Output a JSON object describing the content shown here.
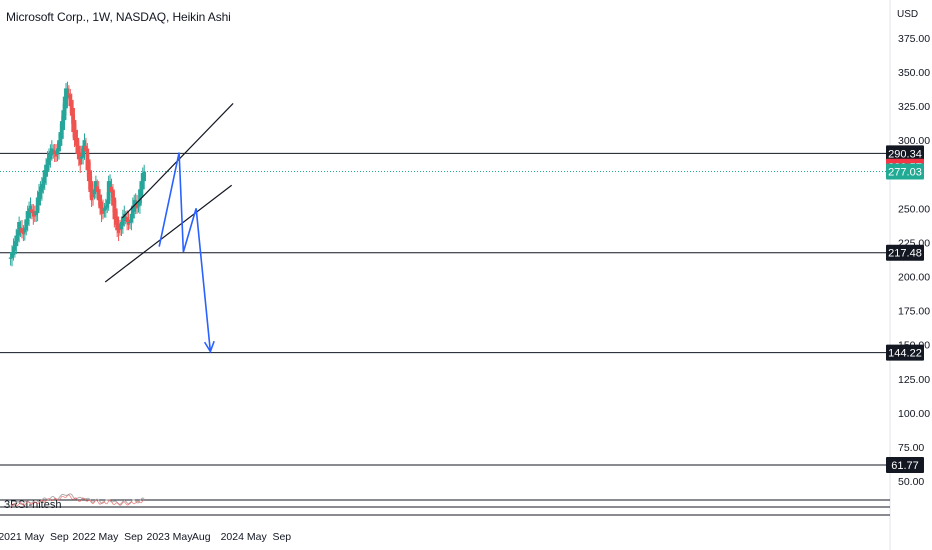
{
  "header": {
    "title": "Microsoft Corp., 1W, NASDAQ, Heikin Ashi",
    "currency": "USD"
  },
  "indicator": {
    "label": "3RSI-hitesh"
  },
  "colors": {
    "up": "#26a69a",
    "down": "#ef5350",
    "drawing": "#2962ff",
    "line": "#131722",
    "price_tag_dark": "#131722",
    "price_tag_red": "#f23645",
    "price_tag_green": "#22ab94"
  },
  "chart_data": {
    "type": "candlestick",
    "title": "Microsoft Corp., 1W, NASDAQ, Heikin Ashi",
    "ylabel": "USD",
    "ylim": [
      50,
      390
    ],
    "y_ticks": [
      "375.00",
      "350.00",
      "325.00",
      "300.00",
      "250.00",
      "225.00",
      "200.00",
      "175.00",
      "150.00",
      "125.00",
      "100.00",
      "75.00",
      "50.00"
    ],
    "x_ticks": [
      "2021",
      "May",
      "Sep",
      "2022",
      "May",
      "Sep",
      "2023",
      "May",
      "Aug",
      "2024",
      "May",
      "Sep"
    ],
    "x_tick_dates": [
      "2021-01-01",
      "2021-05-01",
      "2021-09-01",
      "2022-01-01",
      "2022-05-01",
      "2022-09-01",
      "2023-01-01",
      "2023-05-01",
      "2023-08-01",
      "2024-01-01",
      "2024-05-01",
      "2024-09-01"
    ],
    "horizontal_levels": [
      {
        "value": 290.34,
        "color": "#131722"
      },
      {
        "value": 217.48,
        "color": "#131722"
      },
      {
        "value": 144.22,
        "color": "#131722"
      },
      {
        "value": 61.77,
        "color": "#131722"
      }
    ],
    "price_tags": [
      {
        "label": "290.34",
        "value": 290.34,
        "color": "#131722"
      },
      {
        "label": "280.57",
        "value": 280.57,
        "color": "#f23645"
      },
      {
        "label": "277.03",
        "value": 277.03,
        "color": "#22ab94"
      },
      {
        "label": "217.48",
        "value": 217.48,
        "color": "#131722"
      },
      {
        "label": "144.22",
        "value": 144.22,
        "color": "#131722"
      },
      {
        "label": "61.77",
        "value": 61.77,
        "color": "#131722"
      }
    ],
    "current_price": 277.03,
    "weekly_close": [
      214,
      218,
      222,
      226,
      230,
      234,
      240,
      236,
      232,
      231,
      236,
      242,
      248,
      250,
      252,
      247,
      244,
      244,
      248,
      258,
      262,
      266,
      268,
      272,
      278,
      282,
      286,
      290,
      292,
      294,
      293,
      290,
      288,
      294,
      300,
      306,
      314,
      322,
      332,
      338,
      338,
      333,
      325,
      318,
      306,
      300,
      296,
      290,
      286,
      282,
      288,
      296,
      300,
      292,
      278,
      270,
      262,
      256,
      258,
      264,
      270,
      262,
      256,
      250,
      246,
      246,
      250,
      252,
      256,
      270,
      270,
      262,
      252,
      242,
      238,
      234,
      232,
      234,
      240,
      244,
      246,
      244,
      240,
      238,
      240,
      246,
      252,
      256,
      256,
      250,
      252,
      264,
      270,
      276,
      277
    ],
    "channels": [
      {
        "start": [
          "2022-07-08",
          243
        ],
        "end": [
          "2024-01-05",
          327
        ],
        "color": "#131722"
      },
      {
        "start": [
          "2022-04-15",
          196
        ],
        "end": [
          "2023-12-29",
          267
        ],
        "color": "#131722"
      }
    ],
    "projection_path": [
      [
        "2023-01-06",
        222
      ],
      [
        "2023-04-14",
        291
      ],
      [
        "2023-05-05",
        218
      ],
      [
        "2023-07-07",
        250
      ],
      [
        "2023-09-15",
        145
      ]
    ]
  }
}
